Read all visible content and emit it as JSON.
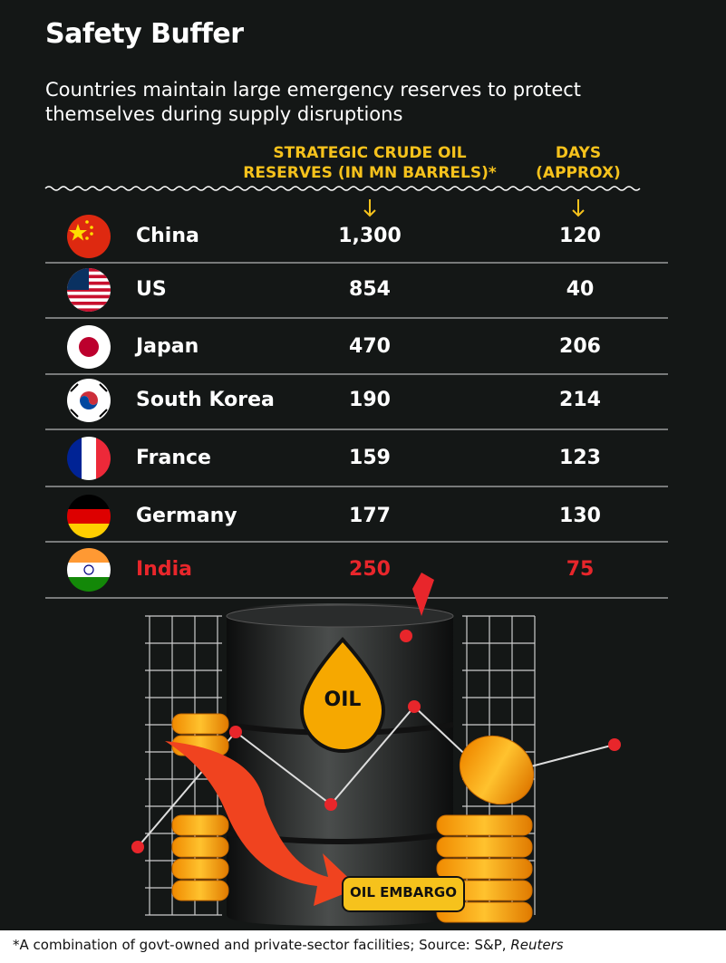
{
  "header": {
    "title": "Safety Buffer",
    "subtitle": "Countries maintain large emergency reserves to protect themselves during supply disruptions"
  },
  "table": {
    "columns": [
      "STRATEGIC CRUDE OIL RESERVES (IN MN BARRELS)*",
      "DAYS (APPROX)"
    ],
    "rows": [
      {
        "country": "China",
        "reserves": "1,300",
        "days": "120"
      },
      {
        "country": "US",
        "reserves": "854",
        "days": "40"
      },
      {
        "country": "Japan",
        "reserves": "470",
        "days": "206"
      },
      {
        "country": "South Korea",
        "reserves": "190",
        "days": "214"
      },
      {
        "country": "France",
        "reserves": "159",
        "days": "123"
      },
      {
        "country": "Germany",
        "reserves": "177",
        "days": "130"
      },
      {
        "country": "India",
        "reserves": "250",
        "days": "75",
        "highlight": true
      }
    ]
  },
  "illustration": {
    "barrel_label": "OIL",
    "banner": "OIL EMBARGO"
  },
  "footnote": {
    "text": "*A combination of govt-owned and private-sector facilities; Source: S&P,",
    "source": "Reuters"
  }
}
